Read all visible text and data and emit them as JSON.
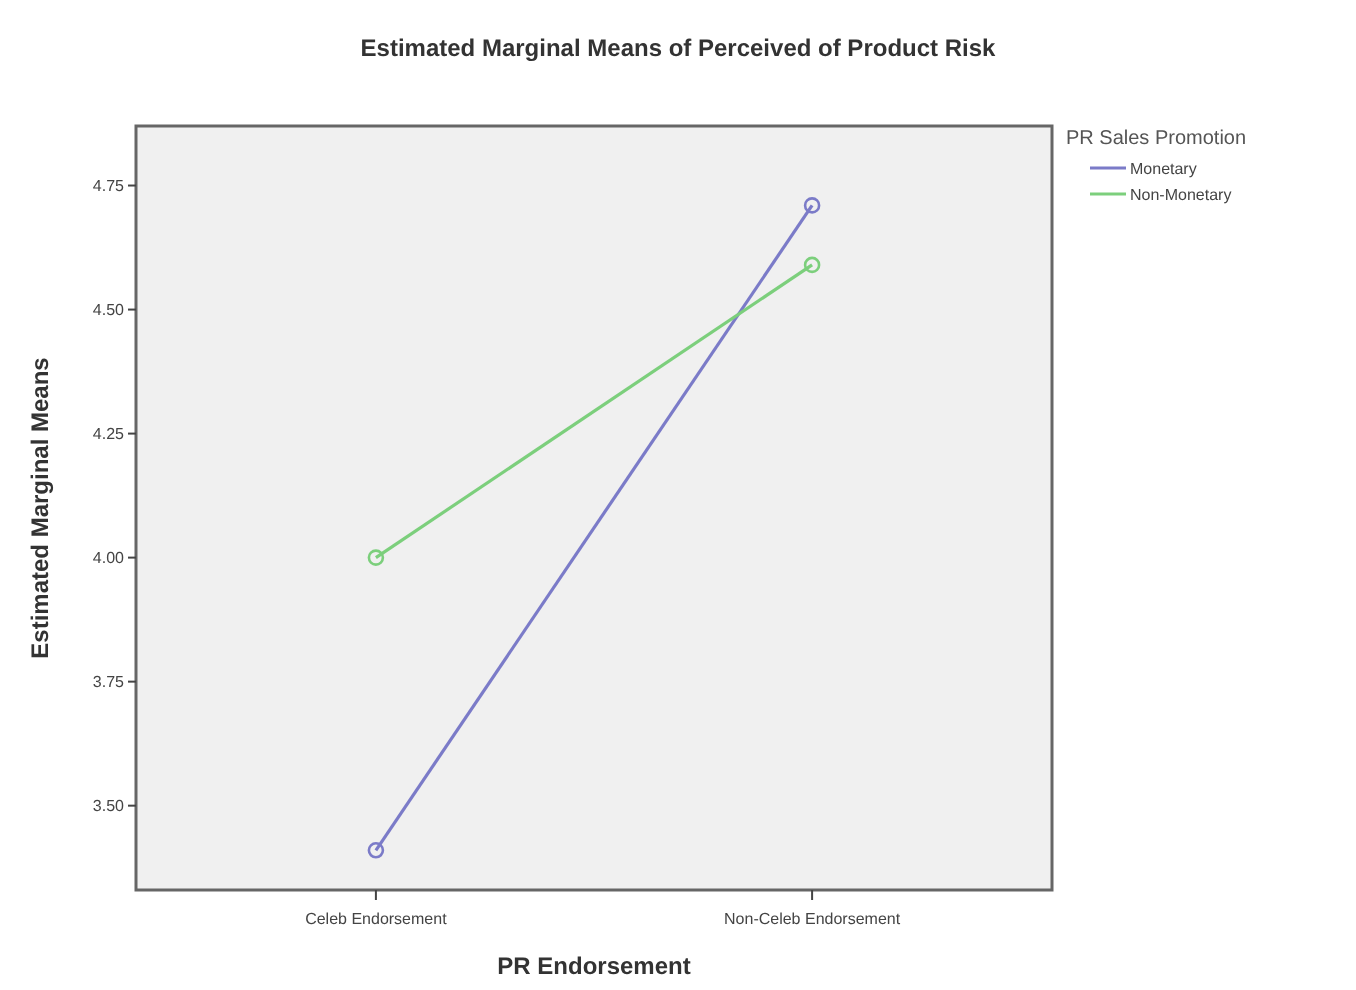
{
  "chart_data": {
    "type": "line",
    "title": "Estimated Marginal Means of Perceived of Product Risk",
    "xlabel": "PR Endorsement",
    "ylabel": "Estimated Marginal Means",
    "legend_title": "PR Sales Promotion",
    "categories": [
      "Celeb Endorsement",
      "Non-Celeb Endorsement"
    ],
    "series": [
      {
        "name": "Monetary",
        "color": "#7b7bc8",
        "values": [
          3.41,
          4.71
        ]
      },
      {
        "name": "Non-Monetary",
        "color": "#7ccf7c",
        "values": [
          4.0,
          4.59
        ]
      }
    ],
    "ylim": [
      3.33,
      4.87
    ],
    "yticks": [
      {
        "value": 3.5,
        "label": "3.50"
      },
      {
        "value": 3.75,
        "label": "3.75"
      },
      {
        "value": 4.0,
        "label": "4.00"
      },
      {
        "value": 4.25,
        "label": "4.25"
      },
      {
        "value": 4.5,
        "label": "4.50"
      },
      {
        "value": 4.75,
        "label": "4.75"
      }
    ],
    "grid": false,
    "legend": "top right",
    "marker": "circle",
    "line_style": "solid"
  }
}
